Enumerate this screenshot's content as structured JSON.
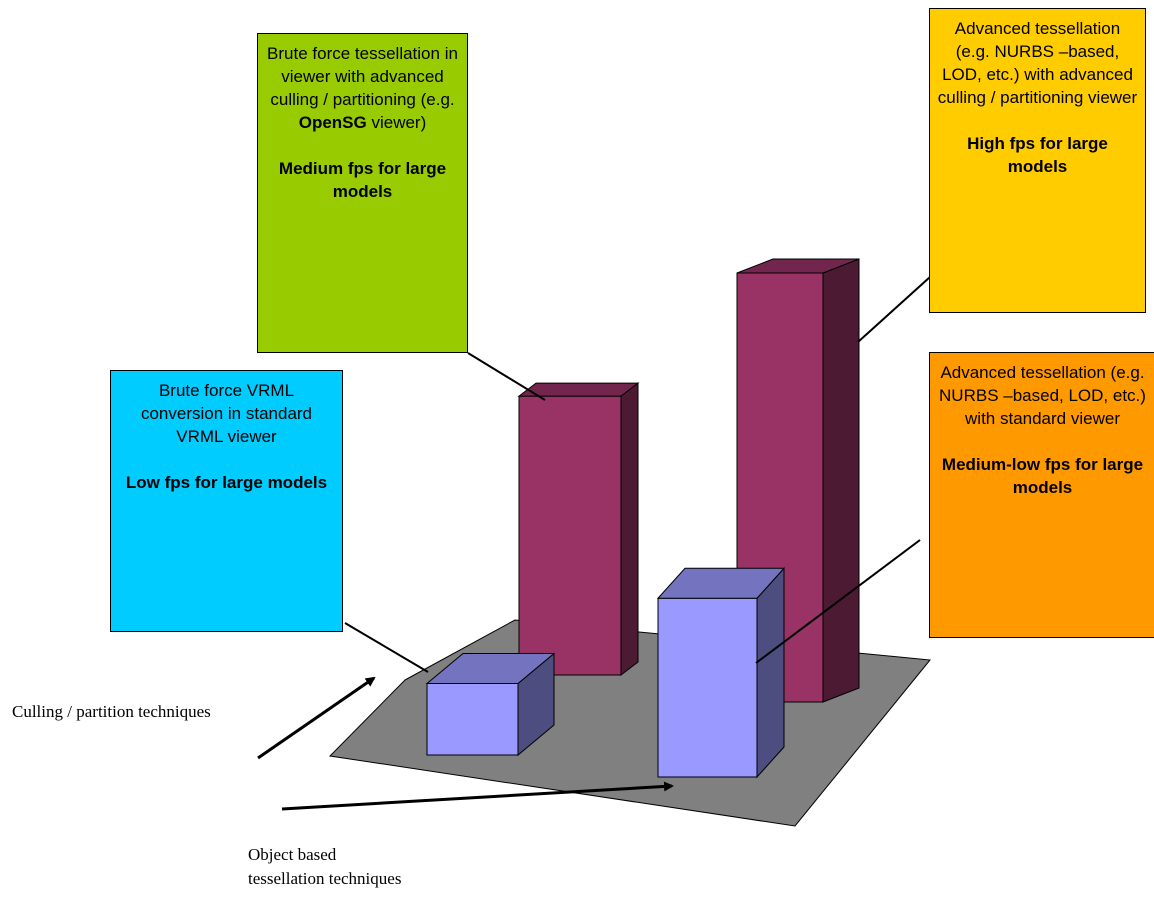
{
  "chart_data": {
    "type": "bar",
    "style": "3d",
    "grid": false,
    "legend": "none",
    "axes": {
      "depth_axis_label": "Culling / partition techniques",
      "x_axis_label_line1": "Object based",
      "x_axis_label_line2": "tessellation techniques"
    },
    "bars": [
      {
        "key": "brute_vrml",
        "row": "front",
        "column": "left",
        "relative_height": 1.0,
        "color": "#9999ff"
      },
      {
        "key": "brute_opensg",
        "row": "back",
        "column": "left",
        "relative_height": 3.9,
        "color": "#993366"
      },
      {
        "key": "adv_standard",
        "row": "front",
        "column": "right",
        "relative_height": 2.5,
        "color": "#9999ff"
      },
      {
        "key": "adv_culling",
        "row": "back",
        "column": "right",
        "relative_height": 6.0,
        "color": "#993366"
      }
    ],
    "floor_color": "#808080"
  },
  "callouts": {
    "brute_vrml": {
      "color": "#00ccff",
      "description": "Brute force VRML conversion in standard VRML viewer",
      "performance": "Low fps for large models"
    },
    "brute_opensg": {
      "color": "#99cc00",
      "description_prefix": "Brute force tessellation in viewer  with advanced culling / partitioning (e.g. ",
      "description_bold": "OpenSG",
      "description_suffix": " viewer)",
      "performance": "Medium fps for large models"
    },
    "adv_culling": {
      "color": "#ffcc00",
      "description": "Advanced tessellation (e.g. NURBS –based, LOD,  etc.) with advanced culling / partitioning viewer",
      "performance": "High fps for large models"
    },
    "adv_standard": {
      "color": "#ff9900",
      "description": "Advanced tessellation (e.g. NURBS –based, LOD,  etc.) with standard viewer",
      "performance": "Medium-low   fps for large models"
    }
  }
}
